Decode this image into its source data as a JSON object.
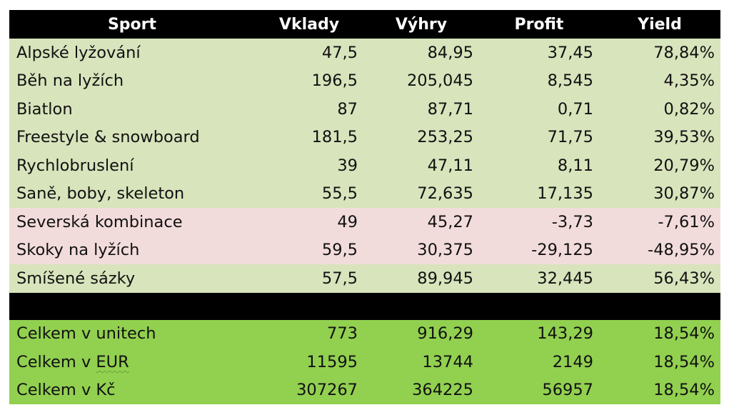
{
  "chart_data": {
    "type": "table",
    "columns": [
      "Sport",
      "Vklady",
      "Výhry",
      "Profit",
      "Yield"
    ],
    "rows": [
      [
        "Alpské lyžování",
        "47,5",
        "84,95",
        "37,45",
        "78,84%"
      ],
      [
        "Běh na lyžích",
        "196,5",
        "205,045",
        "8,545",
        "4,35%"
      ],
      [
        "Biatlon",
        "87",
        "87,71",
        "0,71",
        "0,82%"
      ],
      [
        "Freestyle & snowboard",
        "181,5",
        "253,25",
        "71,75",
        "39,53%"
      ],
      [
        "Rychlobruslení",
        "39",
        "47,11",
        "8,11",
        "20,79%"
      ],
      [
        "Saně, boby,  skeleton",
        "55,5",
        "72,635",
        "17,135",
        "30,87%"
      ],
      [
        "Severská kombinace",
        "49",
        "45,27",
        "-3,73",
        "-7,61%"
      ],
      [
        "Skoky na lyžích",
        "59,5",
        "30,375",
        "-29,125",
        "-48,95%"
      ],
      [
        "Smíšené sázky",
        "57,5",
        "89,945",
        "32,445",
        "56,43%"
      ]
    ],
    "totals": [
      [
        "Celkem v unitech",
        "773",
        "916,29",
        "143,29",
        "18,54%"
      ],
      [
        "Celkem v ",
        "11595",
        "13744",
        "2149",
        "18,54%"
      ],
      [
        "Celkem v Kč",
        "307267",
        "364225",
        "56957",
        "18,54%"
      ]
    ],
    "totals_currency": "EUR",
    "colors": {
      "header_bg": "#000000",
      "header_text": "#ffffff",
      "positive_row": "#d8e4bc",
      "negative_row": "#f2dcdb",
      "total_row": "#92d050"
    }
  }
}
